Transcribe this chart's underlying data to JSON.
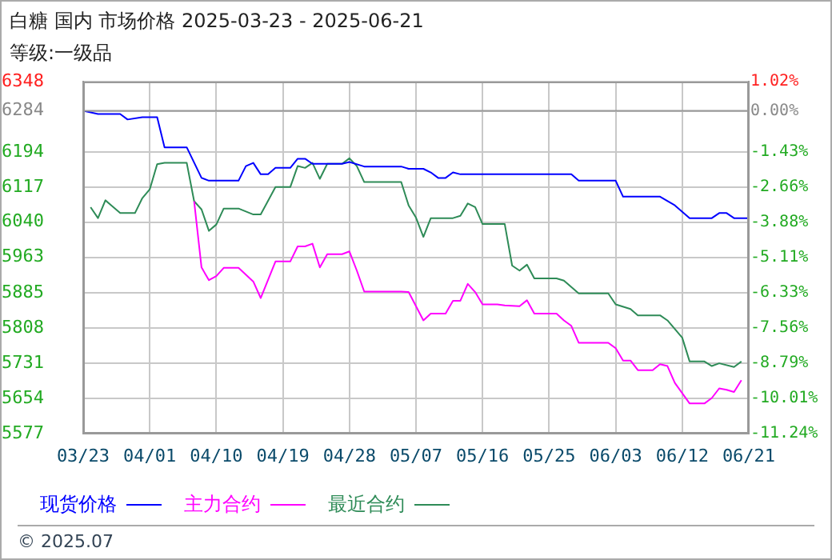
{
  "chart_data": {
    "type": "line",
    "title": "白糖 国内 市场价格 2025-03-23 - 2025-06-21",
    "subtitle": "等级:一级品",
    "annotations": [
      "© 2025.07"
    ],
    "xlim": [
      "2025-03-23",
      "2025-06-21"
    ],
    "xticks": [
      {
        "value": "2025-03-23",
        "label": "03/23"
      },
      {
        "value": "2025-04-01",
        "label": "04/01"
      },
      {
        "value": "2025-04-10",
        "label": "04/10"
      },
      {
        "value": "2025-04-19",
        "label": "04/19"
      },
      {
        "value": "2025-04-28",
        "label": "04/28"
      },
      {
        "value": "2025-05-07",
        "label": "05/07"
      },
      {
        "value": "2025-05-16",
        "label": "05/16"
      },
      {
        "value": "2025-05-25",
        "label": "05/25"
      },
      {
        "value": "2025-06-03",
        "label": "06/03"
      },
      {
        "value": "2025-06-12",
        "label": "06/12"
      },
      {
        "value": "2025-06-21",
        "label": "06/21"
      }
    ],
    "ylim": [
      5577,
      6348
    ],
    "yticks": [
      5577,
      5654,
      5731,
      5808,
      5885,
      5963,
      6040,
      6117,
      6194,
      6284,
      6348
    ],
    "y2lim": [
      -11.24,
      1.02
    ],
    "y2ticks": [
      {
        "value": -11.24,
        "label": "-11.24%"
      },
      {
        "value": -10.01,
        "label": "-10.01%"
      },
      {
        "value": -8.79,
        "label": "-8.79%"
      },
      {
        "value": -7.56,
        "label": "-7.56%"
      },
      {
        "value": -6.33,
        "label": "-6.33%"
      },
      {
        "value": -5.11,
        "label": "-5.11%"
      },
      {
        "value": -3.88,
        "label": "-3.88%"
      },
      {
        "value": -2.66,
        "label": "-2.66%"
      },
      {
        "value": -1.43,
        "label": "-1.43%"
      },
      {
        "value": 0,
        "label": "0.00%"
      },
      {
        "value": 1.02,
        "label": "1.02%"
      }
    ],
    "ref_lines": [
      {
        "axis": "y",
        "value": 6284,
        "color": "#999999"
      }
    ],
    "grid": true,
    "legend": "bottom",
    "marker": "none",
    "line_style": "solid",
    "series": [
      {
        "name": "现货价格",
        "color": "#0000ff",
        "x": [
          "2025-03-23",
          "2025-03-25",
          "2025-03-28",
          "2025-03-29",
          "2025-03-31",
          "2025-04-02",
          "2025-04-03",
          "2025-04-06",
          "2025-04-08",
          "2025-04-09",
          "2025-04-13",
          "2025-04-14",
          "2025-04-15",
          "2025-04-16",
          "2025-04-17",
          "2025-04-18",
          "2025-04-20",
          "2025-04-21",
          "2025-04-22",
          "2025-04-23",
          "2025-04-27",
          "2025-04-28",
          "2025-04-30",
          "2025-05-05",
          "2025-05-06",
          "2025-05-08",
          "2025-05-09",
          "2025-05-10",
          "2025-05-11",
          "2025-05-12",
          "2025-05-13",
          "2025-05-28",
          "2025-05-29",
          "2025-06-03",
          "2025-06-04",
          "2025-06-09",
          "2025-06-11",
          "2025-06-13",
          "2025-06-16",
          "2025-06-17",
          "2025-06-18",
          "2025-06-19",
          "2025-06-21"
        ],
        "values": [
          6284,
          6277,
          6277,
          6265,
          6270,
          6270,
          6204,
          6204,
          6137,
          6131,
          6131,
          6163,
          6170,
          6145,
          6145,
          6159,
          6159,
          6179,
          6179,
          6168,
          6168,
          6172,
          6162,
          6162,
          6157,
          6157,
          6149,
          6137,
          6137,
          6149,
          6145,
          6145,
          6131,
          6131,
          6096,
          6096,
          6077,
          6049,
          6049,
          6060,
          6060,
          6049,
          6049
        ]
      },
      {
        "name": "主力合约",
        "color": "#ff00ff",
        "x": [
          "2025-04-07",
          "2025-04-08",
          "2025-04-09",
          "2025-04-10",
          "2025-04-11",
          "2025-04-13",
          "2025-04-15",
          "2025-04-16",
          "2025-04-18",
          "2025-04-20",
          "2025-04-21",
          "2025-04-22",
          "2025-04-23",
          "2025-04-24",
          "2025-04-25",
          "2025-04-27",
          "2025-04-28",
          "2025-04-29",
          "2025-04-30",
          "2025-05-05",
          "2025-05-06",
          "2025-05-08",
          "2025-05-09",
          "2025-05-11",
          "2025-05-12",
          "2025-05-13",
          "2025-05-14",
          "2025-05-15",
          "2025-05-16",
          "2025-05-18",
          "2025-05-19",
          "2025-05-21",
          "2025-05-22",
          "2025-05-23",
          "2025-05-26",
          "2025-05-27",
          "2025-05-28",
          "2025-05-29",
          "2025-06-02",
          "2025-06-03",
          "2025-06-04",
          "2025-06-05",
          "2025-06-06",
          "2025-06-08",
          "2025-06-09",
          "2025-06-10",
          "2025-06-11",
          "2025-06-13",
          "2025-06-15",
          "2025-06-16",
          "2025-06-17",
          "2025-06-18",
          "2025-06-19",
          "2025-06-20"
        ],
        "values": [
          6086,
          5941,
          5913,
          5922,
          5940,
          5940,
          5910,
          5874,
          5954,
          5954,
          5987,
          5987,
          5993,
          5941,
          5970,
          5970,
          5976,
          5934,
          5888,
          5888,
          5887,
          5825,
          5840,
          5840,
          5868,
          5868,
          5905,
          5887,
          5860,
          5860,
          5858,
          5856,
          5869,
          5840,
          5840,
          5825,
          5813,
          5776,
          5776,
          5764,
          5737,
          5737,
          5716,
          5716,
          5729,
          5725,
          5688,
          5643,
          5643,
          5655,
          5676,
          5673,
          5668,
          5694
        ]
      },
      {
        "name": "最近合约",
        "color": "#2e8b57",
        "x": [
          "2025-03-24",
          "2025-03-25",
          "2025-03-26",
          "2025-03-28",
          "2025-03-30",
          "2025-03-31",
          "2025-04-01",
          "2025-04-02",
          "2025-04-03",
          "2025-04-06",
          "2025-04-07",
          "2025-04-08",
          "2025-04-09",
          "2025-04-10",
          "2025-04-11",
          "2025-04-13",
          "2025-04-15",
          "2025-04-16",
          "2025-04-18",
          "2025-04-20",
          "2025-04-21",
          "2025-04-22",
          "2025-04-23",
          "2025-04-24",
          "2025-04-25",
          "2025-04-27",
          "2025-04-28",
          "2025-04-29",
          "2025-04-30",
          "2025-05-05",
          "2025-05-06",
          "2025-05-07",
          "2025-05-08",
          "2025-05-09",
          "2025-05-12",
          "2025-05-13",
          "2025-05-14",
          "2025-05-15",
          "2025-05-16",
          "2025-05-19",
          "2025-05-20",
          "2025-05-21",
          "2025-05-22",
          "2025-05-23",
          "2025-05-26",
          "2025-05-27",
          "2025-05-29",
          "2025-06-02",
          "2025-06-03",
          "2025-06-05",
          "2025-06-06",
          "2025-06-09",
          "2025-06-10",
          "2025-06-12",
          "2025-06-13",
          "2025-06-15",
          "2025-06-16",
          "2025-06-17",
          "2025-06-19",
          "2025-06-20"
        ],
        "values": [
          6073,
          6049,
          6088,
          6060,
          6060,
          6093,
          6112,
          6167,
          6170,
          6170,
          6086,
          6068,
          6021,
          6035,
          6070,
          6070,
          6057,
          6057,
          6117,
          6117,
          6163,
          6159,
          6170,
          6135,
          6168,
          6168,
          6180,
          6163,
          6128,
          6128,
          6077,
          6050,
          6008,
          6049,
          6049,
          6054,
          6081,
          6073,
          6036,
          6036,
          5945,
          5934,
          5947,
          5917,
          5917,
          5912,
          5884,
          5884,
          5860,
          5850,
          5836,
          5836,
          5825,
          5787,
          5735,
          5735,
          5725,
          5731,
          5723,
          5735
        ]
      }
    ]
  }
}
